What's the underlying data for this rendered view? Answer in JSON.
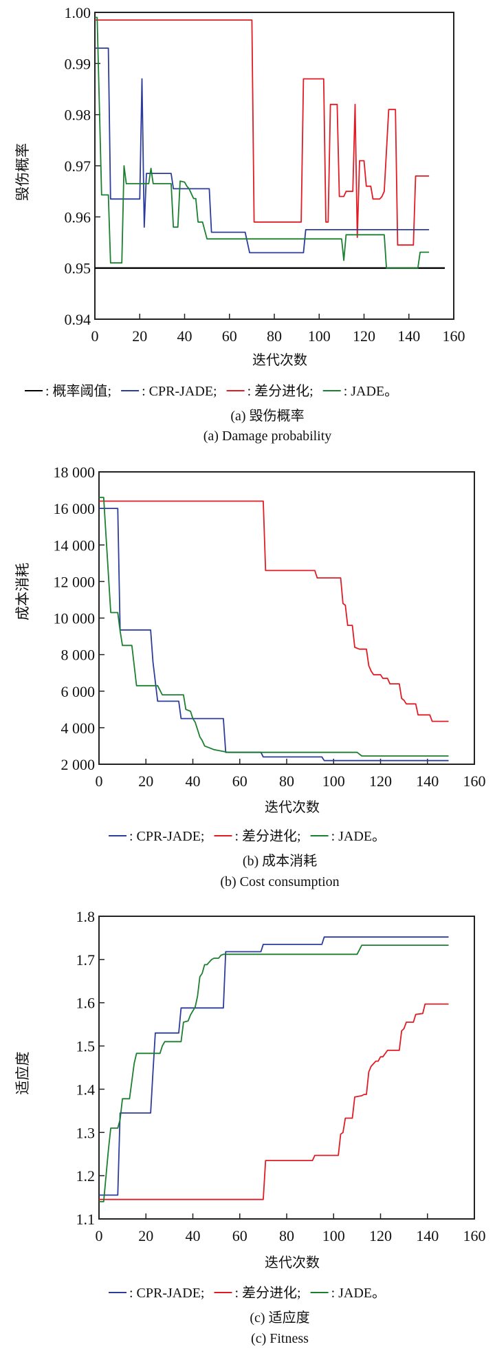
{
  "colors": {
    "threshold": "#000000",
    "cpr_jade": "#2b3c9a",
    "de": "#e01b24",
    "jade": "#1a7f2e"
  },
  "chart_data": [
    {
      "type": "line",
      "id": "a",
      "title": "(a) 毁伤概率",
      "subtitle": "(a) Damage probability",
      "xlabel": "迭代次数",
      "ylabel": "毁伤概率",
      "xlim": [
        0,
        160
      ],
      "ylim": [
        0.94,
        1.0
      ],
      "xticks": [
        0,
        20,
        40,
        60,
        80,
        100,
        120,
        140,
        160
      ],
      "yticks": [
        0.94,
        0.95,
        0.96,
        0.97,
        0.98,
        0.99,
        1.0
      ],
      "ytick_labels": [
        "0.94",
        "0.95",
        "0.96",
        "0.97",
        "0.98",
        "0.99",
        "1.00"
      ],
      "grid": false,
      "legend": [
        {
          "key": "threshold",
          "label": ": 概率阈值;"
        },
        {
          "key": "cpr_jade",
          "label": ": CPR-JADE;"
        },
        {
          "key": "de",
          "label": ": 差分进化;"
        },
        {
          "key": "jade",
          "label": ": JADE。"
        }
      ],
      "series": [
        {
          "name": "概率阈值",
          "key": "threshold",
          "x": [
            0,
            156
          ],
          "y": [
            0.95,
            0.95
          ]
        },
        {
          "name": "差分进化",
          "key": "de",
          "x": [
            0,
            70,
            71,
            92,
            93,
            102,
            103,
            104,
            105,
            108,
            109,
            111,
            112,
            115,
            116,
            117,
            118,
            120,
            121,
            123,
            124,
            127,
            128,
            129,
            131,
            134,
            135,
            142,
            143,
            149
          ],
          "y": [
            0.9985,
            0.9985,
            0.959,
            0.959,
            0.987,
            0.987,
            0.959,
            0.959,
            0.982,
            0.982,
            0.964,
            0.964,
            0.965,
            0.965,
            0.982,
            0.956,
            0.971,
            0.971,
            0.966,
            0.966,
            0.9635,
            0.9635,
            0.964,
            0.965,
            0.981,
            0.981,
            0.9545,
            0.9545,
            0.968,
            0.968
          ]
        },
        {
          "name": "CPR-JADE",
          "key": "cpr_jade",
          "x": [
            0,
            6,
            7,
            20,
            21,
            22,
            23,
            27,
            28,
            34,
            35,
            51,
            52,
            67,
            69,
            93,
            94,
            149
          ],
          "y": [
            0.993,
            0.993,
            0.9635,
            0.9635,
            0.987,
            0.958,
            0.9685,
            0.9685,
            0.9685,
            0.9685,
            0.9655,
            0.9655,
            0.957,
            0.957,
            0.953,
            0.953,
            0.9575,
            0.9575
          ]
        },
        {
          "name": "JADE",
          "key": "jade",
          "x": [
            0,
            1,
            3,
            5,
            6,
            7,
            8,
            12,
            13,
            14,
            24,
            25,
            26,
            34,
            35,
            37,
            38,
            40,
            41,
            42,
            44,
            45,
            46,
            48,
            50,
            52,
            110,
            111,
            112,
            129,
            130,
            133,
            144,
            145,
            149
          ],
          "y": [
            0.999,
            0.999,
            0.9643,
            0.9643,
            0.9643,
            0.951,
            0.951,
            0.951,
            0.97,
            0.9665,
            0.9665,
            0.9695,
            0.9665,
            0.9665,
            0.958,
            0.958,
            0.967,
            0.9668,
            0.966,
            0.9655,
            0.9636,
            0.9636,
            0.959,
            0.959,
            0.9557,
            0.9557,
            0.9557,
            0.9515,
            0.9565,
            0.9565,
            0.95,
            0.95,
            0.95,
            0.9531,
            0.9531
          ]
        }
      ]
    },
    {
      "type": "line",
      "id": "b",
      "title": "(b) 成本消耗",
      "subtitle": "(b) Cost consumption",
      "xlabel": "迭代次数",
      "ylabel": "成本消耗",
      "xlim": [
        0,
        160
      ],
      "ylim": [
        2000,
        18000
      ],
      "xticks": [
        0,
        20,
        40,
        60,
        80,
        100,
        120,
        140,
        160
      ],
      "yticks": [
        2000,
        4000,
        6000,
        8000,
        10000,
        12000,
        14000,
        16000,
        18000
      ],
      "ytick_labels": [
        "2 000",
        "4 000",
        "6 000",
        "8 000",
        "10 000",
        "12 000",
        "14 000",
        "16 000",
        "18 000"
      ],
      "grid": false,
      "legend": [
        {
          "key": "cpr_jade",
          "label": ": CPR-JADE;"
        },
        {
          "key": "de",
          "label": ": 差分进化;"
        },
        {
          "key": "jade",
          "label": ": JADE。"
        }
      ],
      "series": [
        {
          "name": "差分进化",
          "key": "de",
          "x": [
            0,
            70,
            71,
            92,
            93,
            103,
            104,
            105,
            106,
            108,
            109,
            111,
            114,
            115,
            116,
            117,
            120,
            121,
            123,
            124,
            128,
            129,
            130,
            131,
            135,
            136,
            141,
            142,
            149
          ],
          "y": [
            16400,
            16400,
            12600,
            12600,
            12200,
            12200,
            10800,
            10700,
            9600,
            9600,
            8400,
            8300,
            8300,
            7400,
            7100,
            6900,
            6900,
            6700,
            6700,
            6400,
            6400,
            5600,
            5500,
            5300,
            5300,
            4700,
            4700,
            4350,
            4350
          ]
        },
        {
          "name": "CPR-JADE",
          "key": "cpr_jade",
          "x": [
            0,
            8,
            9,
            22,
            23,
            25,
            34,
            35,
            53,
            54,
            69,
            70,
            95,
            96,
            149
          ],
          "y": [
            16000,
            16000,
            9350,
            9350,
            7600,
            5450,
            5450,
            4500,
            4500,
            2650,
            2650,
            2400,
            2400,
            2200,
            2200
          ]
        },
        {
          "name": "JADE",
          "key": "jade",
          "x": [
            0,
            2,
            3,
            5,
            8,
            9,
            10,
            14,
            16,
            25,
            27,
            36,
            37,
            39,
            40,
            41,
            42,
            43,
            44,
            45,
            47,
            49,
            53,
            55,
            110,
            112,
            149
          ],
          "y": [
            16600,
            16600,
            14500,
            10300,
            10300,
            9300,
            8500,
            8500,
            6300,
            6300,
            5800,
            5800,
            5000,
            4900,
            4500,
            4300,
            3900,
            3500,
            3300,
            3000,
            2900,
            2800,
            2700,
            2650,
            2650,
            2450,
            2450
          ]
        }
      ]
    },
    {
      "type": "line",
      "id": "c",
      "title": "(c) 适应度",
      "subtitle": "(c) Fitness",
      "xlabel": "迭代次数",
      "ylabel": "适应度",
      "xlim": [
        0,
        160
      ],
      "ylim": [
        1.1,
        1.8
      ],
      "xticks": [
        0,
        20,
        40,
        60,
        80,
        100,
        120,
        140,
        160
      ],
      "yticks": [
        1.1,
        1.2,
        1.3,
        1.4,
        1.5,
        1.6,
        1.7,
        1.8
      ],
      "ytick_labels": [
        "1.1",
        "1.2",
        "1.3",
        "1.4",
        "1.5",
        "1.6",
        "1.7",
        "1.8"
      ],
      "grid": false,
      "legend": [
        {
          "key": "cpr_jade",
          "label": ": CPR-JADE;"
        },
        {
          "key": "de",
          "label": ": 差分进化;"
        },
        {
          "key": "jade",
          "label": ": JADE。"
        }
      ],
      "series": [
        {
          "name": "差分进化",
          "key": "de",
          "x": [
            0,
            70,
            71,
            91,
            92,
            102,
            103,
            104,
            105,
            108,
            109,
            112,
            113,
            114,
            115,
            116,
            118,
            119,
            120,
            121,
            123,
            124,
            125,
            128,
            129,
            130,
            131,
            134,
            135,
            138,
            139,
            149
          ],
          "y": [
            1.145,
            1.145,
            1.235,
            1.235,
            1.247,
            1.247,
            1.296,
            1.3,
            1.333,
            1.333,
            1.382,
            1.385,
            1.388,
            1.388,
            1.44,
            1.453,
            1.465,
            1.465,
            1.475,
            1.475,
            1.49,
            1.49,
            1.49,
            1.49,
            1.535,
            1.54,
            1.555,
            1.555,
            1.573,
            1.575,
            1.597,
            1.597
          ]
        },
        {
          "name": "CPR-JADE",
          "key": "cpr_jade",
          "x": [
            0,
            8,
            9,
            22,
            23,
            24,
            34,
            35,
            53,
            54,
            69,
            70,
            95,
            96,
            149
          ],
          "y": [
            1.155,
            1.155,
            1.345,
            1.345,
            1.44,
            1.53,
            1.53,
            1.588,
            1.588,
            1.718,
            1.718,
            1.735,
            1.735,
            1.752,
            1.752
          ]
        },
        {
          "name": "JADE",
          "key": "jade",
          "x": [
            0,
            2,
            4,
            5,
            8,
            9,
            10,
            13,
            15,
            16,
            26,
            27,
            28,
            35,
            36,
            38,
            39,
            41,
            42,
            43,
            44,
            45,
            46,
            48,
            49,
            51,
            52,
            53,
            110,
            112,
            149
          ],
          "y": [
            1.14,
            1.14,
            1.26,
            1.31,
            1.31,
            1.33,
            1.378,
            1.378,
            1.46,
            1.483,
            1.483,
            1.5,
            1.51,
            1.51,
            1.555,
            1.558,
            1.572,
            1.59,
            1.615,
            1.66,
            1.668,
            1.688,
            1.688,
            1.7,
            1.703,
            1.703,
            1.71,
            1.712,
            1.712,
            1.733,
            1.733
          ]
        }
      ]
    }
  ]
}
